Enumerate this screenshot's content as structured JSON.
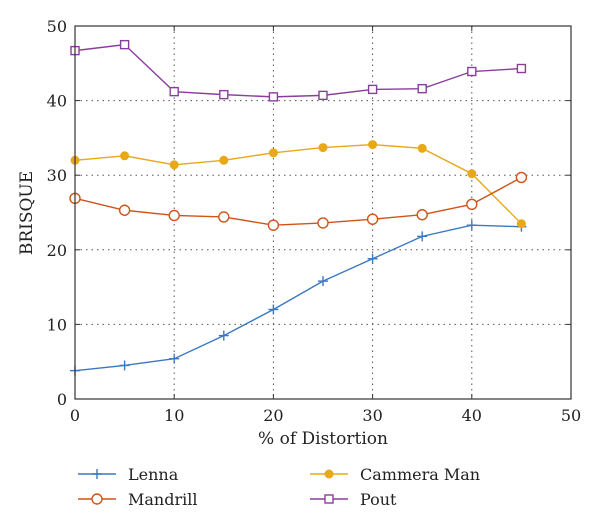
{
  "chart_data": {
    "type": "line",
    "xlabel": "% of Distortion",
    "ylabel": "BRISQUE",
    "xlim": [
      0,
      50
    ],
    "ylim": [
      0,
      50
    ],
    "xticks": [
      0,
      10,
      20,
      30,
      40,
      50
    ],
    "yticks": [
      0,
      10,
      20,
      30,
      40,
      50
    ],
    "grid": true,
    "legend_position": "bottom",
    "x": [
      0,
      5,
      10,
      15,
      20,
      25,
      30,
      35,
      40,
      45
    ],
    "series": [
      {
        "name": "Lenna",
        "color": "#3a78c2",
        "marker": "plus",
        "values": [
          3.8,
          4.5,
          5.4,
          8.5,
          12.0,
          15.8,
          18.8,
          21.8,
          23.3,
          23.1
        ]
      },
      {
        "name": "Cammera Man",
        "color": "#e8a817",
        "marker": "filled-circle",
        "values": [
          32.0,
          32.6,
          31.4,
          32.0,
          33.0,
          33.7,
          34.1,
          33.6,
          30.2,
          23.5
        ]
      },
      {
        "name": "Mandrill",
        "color": "#d1531c",
        "marker": "open-circle",
        "values": [
          26.9,
          25.3,
          24.6,
          24.4,
          23.3,
          23.6,
          24.1,
          24.7,
          26.1,
          29.7
        ]
      },
      {
        "name": "Pout",
        "color": "#8a3e9c",
        "marker": "open-square",
        "values": [
          46.7,
          47.5,
          41.2,
          40.8,
          40.5,
          40.7,
          41.5,
          41.6,
          43.9,
          44.3
        ]
      }
    ]
  }
}
